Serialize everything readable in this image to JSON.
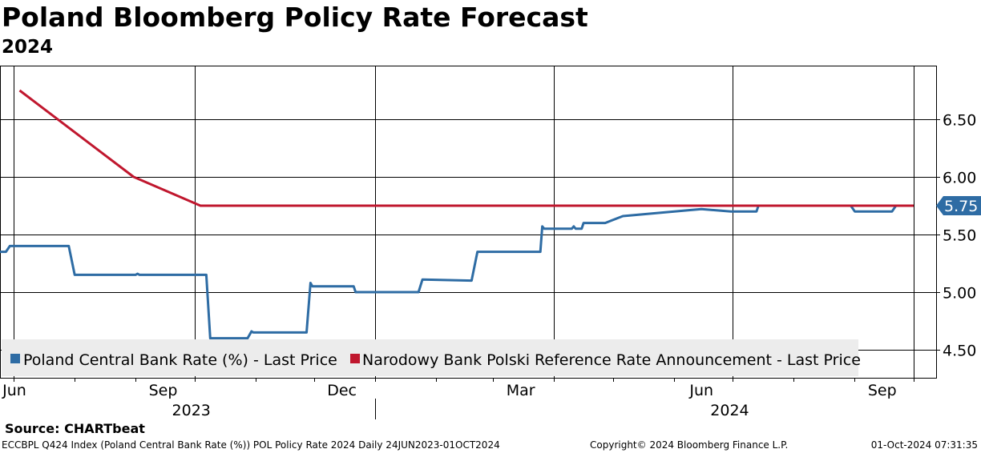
{
  "chart_data": {
    "type": "line",
    "title": "Poland Bloomberg Policy Rate Forecast",
    "subtitle": "2024",
    "ylim": [
      4.4,
      6.95
    ],
    "y_ticks": [
      "4.50",
      "5.00",
      "5.50",
      "6.00",
      "6.50"
    ],
    "month_ticks": [
      "Jun",
      "Sep",
      "Dec",
      "Mar",
      "Jun",
      "Sep"
    ],
    "year_labels": [
      "2023",
      "2024"
    ],
    "grid": true,
    "legend_position": "bottom",
    "last_value_label": "5.75",
    "series": [
      {
        "name": "Poland Central Bank Rate (%) - Last Price",
        "color": "#2e6ca4",
        "points": [
          [
            "2023-06-24",
            5.35
          ],
          [
            "2023-06-27",
            5.35
          ],
          [
            "2023-06-29",
            5.4
          ],
          [
            "2023-07-29",
            5.4
          ],
          [
            "2023-08-01",
            5.15
          ],
          [
            "2023-09-01",
            5.15
          ],
          [
            "2023-09-02",
            5.16
          ],
          [
            "2023-09-03",
            5.15
          ],
          [
            "2023-10-07",
            5.15
          ],
          [
            "2023-10-09",
            4.6
          ],
          [
            "2023-10-28",
            4.6
          ],
          [
            "2023-10-30",
            4.66
          ],
          [
            "2023-10-31",
            4.65
          ],
          [
            "2023-11-27",
            4.65
          ],
          [
            "2023-11-29",
            5.08
          ],
          [
            "2023-11-30",
            5.05
          ],
          [
            "2023-12-21",
            5.05
          ],
          [
            "2023-12-22",
            5.0
          ],
          [
            "2024-01-23",
            5.0
          ],
          [
            "2024-01-25",
            5.11
          ],
          [
            "2024-02-19",
            5.1
          ],
          [
            "2024-02-22",
            5.35
          ],
          [
            "2024-03-25",
            5.35
          ],
          [
            "2024-03-26",
            5.57
          ],
          [
            "2024-03-27",
            5.55
          ],
          [
            "2024-04-10",
            5.55
          ],
          [
            "2024-04-11",
            5.57
          ],
          [
            "2024-04-12",
            5.55
          ],
          [
            "2024-04-15",
            5.55
          ],
          [
            "2024-04-16",
            5.6
          ],
          [
            "2024-04-27",
            5.6
          ],
          [
            "2024-05-06",
            5.66
          ],
          [
            "2024-06-08",
            5.71
          ],
          [
            "2024-06-15",
            5.72
          ],
          [
            "2024-06-30",
            5.7
          ],
          [
            "2024-07-13",
            5.7
          ],
          [
            "2024-07-14",
            5.75
          ],
          [
            "2024-08-30",
            5.75
          ],
          [
            "2024-09-01",
            5.7
          ],
          [
            "2024-09-20",
            5.7
          ],
          [
            "2024-09-22",
            5.75
          ],
          [
            "2024-10-01",
            5.75
          ]
        ]
      },
      {
        "name": "Narodowy Bank Polski Reference Rate Announcement - Last Price",
        "color": "#c0172e",
        "points": [
          [
            "2023-07-04",
            6.75
          ],
          [
            "2023-08-31",
            6.0
          ],
          [
            "2023-10-04",
            5.75
          ],
          [
            "2024-10-01",
            5.75
          ]
        ]
      }
    ]
  },
  "source": "Source:  CHARTbeat",
  "footer": {
    "left": "ECCBPL Q424 Index (Poland Central Bank Rate (%)) POL Policy Rate 2024  Daily 24JUN2023-01OCT2024",
    "middle": "Copyright© 2024 Bloomberg Finance L.P.",
    "right": "01-Oct-2024 07:31:35"
  }
}
